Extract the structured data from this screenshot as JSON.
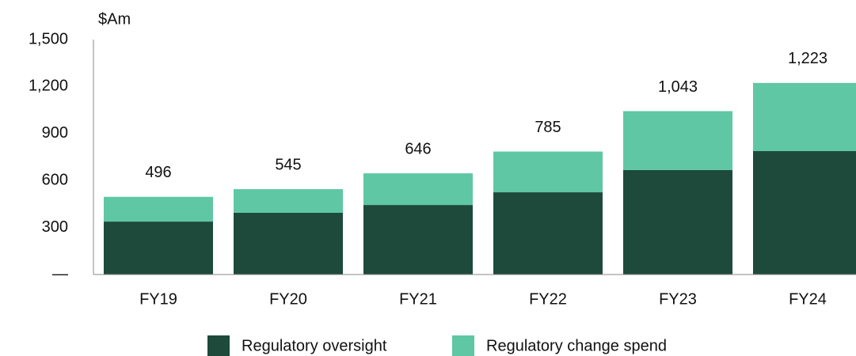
{
  "chart_data": {
    "type": "stacked_bar",
    "y_axis_label": "$Am",
    "categories": [
      "FY19",
      "FY20",
      "FY21",
      "FY22",
      "FY23",
      "FY24"
    ],
    "series": [
      {
        "name": "Regulatory oversight",
        "color": "#1e4a3c",
        "values": [
          338,
          394,
          444,
          525,
          667,
          788
        ]
      },
      {
        "name": "Regulatory change spend",
        "color": "#5fc7a4",
        "values": [
          158,
          151,
          202,
          260,
          376,
          435
        ]
      }
    ],
    "totals": {
      "values": [
        496,
        545,
        646,
        785,
        1043,
        1223
      ],
      "value_labels": [
        "496",
        "545",
        "646",
        "785",
        "1,043",
        "1,223"
      ]
    },
    "ylim": [
      0,
      1500
    ],
    "yticks": [
      {
        "value": 0,
        "label": "—"
      },
      300,
      600,
      900,
      {
        "value": 1200,
        "label": "1,200"
      },
      {
        "value": 1500,
        "label": "1,500"
      }
    ],
    "grid": false
  }
}
